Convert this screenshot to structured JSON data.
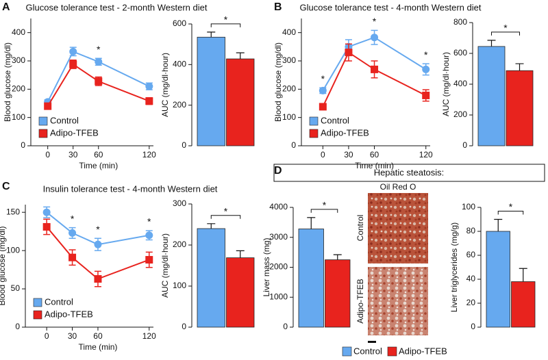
{
  "chart_data": [
    {
      "type": "line",
      "panel": "A",
      "title": "Glucose tolerance test - 2-month Western diet",
      "xlabel": "Time (min)",
      "ylabel": "Blood glucose (mg/dl)",
      "x": [
        0,
        30,
        60,
        120
      ],
      "xlim": [
        -20,
        125
      ],
      "xticks": [
        0,
        30,
        60,
        120
      ],
      "ylim": [
        0,
        450
      ],
      "yticks": [
        0,
        100,
        200,
        300,
        400
      ],
      "legend": "lower left",
      "series": [
        {
          "name": "Control",
          "color": "#66a9ef",
          "values": [
            155,
            333,
            297,
            210
          ],
          "errors": [
            8,
            15,
            12,
            12
          ]
        },
        {
          "name": "Adipo-TFEB",
          "color": "#e8231e",
          "values": [
            140,
            288,
            228,
            158
          ],
          "errors": [
            8,
            15,
            15,
            12
          ]
        }
      ],
      "annotations": [
        {
          "x": 60,
          "text": "*"
        }
      ]
    },
    {
      "type": "bar",
      "ylabel": "AUC (mg/dl·hour)",
      "ylim": [
        0,
        600
      ],
      "yticks": [
        0,
        200,
        400,
        600
      ],
      "significance": "*",
      "series": [
        {
          "name": "Control",
          "color": "#66a9ef",
          "values": [
            535
          ],
          "errors": [
            25
          ]
        },
        {
          "name": "Adipo-TFEB",
          "color": "#e8231e",
          "values": [
            428
          ],
          "errors": [
            30
          ]
        }
      ]
    },
    {
      "type": "line",
      "panel": "B",
      "title": "Glucose tolerance test - 4-month Western diet",
      "xlabel": "Time (min)",
      "ylabel": "Blood glucose (mg/dl)",
      "x": [
        0,
        30,
        60,
        120
      ],
      "xlim": [
        -25,
        125
      ],
      "xticks": [
        0,
        30,
        60,
        120
      ],
      "ylim": [
        0,
        450
      ],
      "yticks": [
        0,
        100,
        200,
        300,
        400
      ],
      "legend": "lower left",
      "series": [
        {
          "name": "Control",
          "color": "#66a9ef",
          "values": [
            195,
            350,
            383,
            270
          ],
          "errors": [
            10,
            25,
            25,
            20
          ]
        },
        {
          "name": "Adipo-TFEB",
          "color": "#e8231e",
          "values": [
            138,
            330,
            270,
            178
          ],
          "errors": [
            10,
            30,
            30,
            20
          ]
        }
      ],
      "annotations": [
        {
          "x": 0,
          "text": "*"
        },
        {
          "x": 60,
          "text": "*"
        },
        {
          "x": 120,
          "text": "*"
        }
      ]
    },
    {
      "type": "bar",
      "ylabel": "AUC (mg/dl·hour)",
      "ylim": [
        0,
        800
      ],
      "yticks": [
        0,
        200,
        400,
        600,
        800
      ],
      "significance": "*",
      "series": [
        {
          "name": "Control",
          "color": "#66a9ef",
          "values": [
            645
          ],
          "errors": [
            40
          ]
        },
        {
          "name": "Adipo-TFEB",
          "color": "#e8231e",
          "values": [
            488
          ],
          "errors": [
            45
          ]
        }
      ]
    },
    {
      "type": "line",
      "panel": "C",
      "title": "Insulin tolerance test - 4-month Western diet",
      "xlabel": "Time (min)",
      "ylabel": "Blood glucose (mg/dl)",
      "x": [
        0,
        30,
        60,
        120
      ],
      "xlim": [
        -25,
        125
      ],
      "xticks": [
        0,
        30,
        60,
        120
      ],
      "ylim": [
        0,
        160
      ],
      "yticks": [
        0,
        50,
        100,
        150
      ],
      "legend": "lower left",
      "series": [
        {
          "name": "Control",
          "color": "#66a9ef",
          "values": [
            150,
            123,
            108,
            120
          ],
          "errors": [
            7,
            7,
            8,
            6
          ]
        },
        {
          "name": "Adipo-TFEB",
          "color": "#e8231e",
          "values": [
            131,
            91,
            63,
            88
          ],
          "errors": [
            10,
            10,
            10,
            10
          ]
        }
      ],
      "annotations": [
        {
          "x": 30,
          "text": "*"
        },
        {
          "x": 60,
          "text": "*"
        },
        {
          "x": 120,
          "text": "*"
        }
      ]
    },
    {
      "type": "bar",
      "ylabel": "AUC (mg/dl·hour)",
      "ylim": [
        0,
        300
      ],
      "yticks": [
        0,
        100,
        200,
        300
      ],
      "significance": "*",
      "series": [
        {
          "name": "Control",
          "color": "#66a9ef",
          "values": [
            240
          ],
          "errors": [
            12
          ]
        },
        {
          "name": "Adipo-TFEB",
          "color": "#e8231e",
          "values": [
            169
          ],
          "errors": [
            17
          ]
        }
      ]
    },
    {
      "type": "bar",
      "panel": "D",
      "ylabel": "Liver mass (mg)",
      "ylim": [
        0,
        4000
      ],
      "yticks": [
        0,
        1000,
        2000,
        3000,
        4000
      ],
      "significance": "*",
      "series": [
        {
          "name": "Control",
          "color": "#66a9ef",
          "values": [
            3280
          ],
          "errors": [
            380
          ]
        },
        {
          "name": "Adipo-TFEB",
          "color": "#e8231e",
          "values": [
            2250
          ],
          "errors": [
            170
          ]
        }
      ]
    },
    {
      "type": "bar",
      "ylabel": "Liver triglycerides (mg/g)",
      "ylim": [
        0,
        100
      ],
      "yticks": [
        0,
        20,
        40,
        60,
        80,
        100
      ],
      "significance": "*",
      "legend": "bottom",
      "series": [
        {
          "name": "Control",
          "color": "#66a9ef",
          "values": [
            80
          ],
          "errors": [
            10
          ]
        },
        {
          "name": "Adipo-TFEB",
          "color": "#e8231e",
          "values": [
            38
          ],
          "errors": [
            11
          ]
        }
      ]
    }
  ],
  "hepatic": {
    "title": "Hepatic steatosis:",
    "image_title": "Oil Red O",
    "image_labels": [
      "Control",
      "Adipo-TFEB"
    ]
  }
}
